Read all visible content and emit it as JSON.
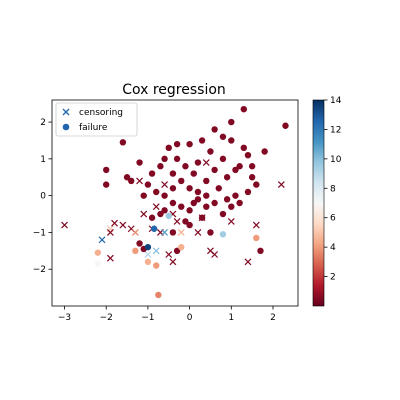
{
  "chart_data": {
    "type": "scatter",
    "title": "Cox regression",
    "xlabel": "",
    "ylabel": "",
    "xlim": [
      -3.3,
      2.6
    ],
    "ylim": [
      -3.0,
      2.6
    ],
    "xticks": [
      -3,
      -2,
      -1,
      0,
      1,
      2
    ],
    "yticks": [
      -2,
      -1,
      0,
      1,
      2
    ],
    "grid": false,
    "legend": {
      "location": "upper-left",
      "entries": [
        {
          "label": "censoring",
          "marker": "x",
          "color": "#2166ac"
        },
        {
          "label": "failure",
          "marker": "o",
          "color": "#2166ac"
        }
      ]
    },
    "colorbar": {
      "min": 0,
      "max": 14,
      "ticks": [
        2,
        4,
        6,
        8,
        10,
        12,
        14
      ],
      "colormap": "RdBu",
      "colors": [
        "#67001f",
        "#b2182b",
        "#d6604d",
        "#f4a582",
        "#fddbc7",
        "#f7f7f7",
        "#d1e5f0",
        "#92c5de",
        "#4393c3",
        "#2166ac",
        "#053061"
      ]
    },
    "series": [
      {
        "name": "censoring",
        "marker": "x",
        "points": [
          {
            "x": -3.0,
            "y": -0.8,
            "c": 0.5
          },
          {
            "x": -2.1,
            "y": -1.2,
            "c": 12.5
          },
          {
            "x": -1.9,
            "y": -0.9,
            "c": 5.0
          },
          {
            "x": -1.8,
            "y": -0.75,
            "c": 0.5
          },
          {
            "x": -1.9,
            "y": -1.0,
            "c": 0.5
          },
          {
            "x": -1.9,
            "y": -1.7,
            "c": 0.5
          },
          {
            "x": -1.6,
            "y": -0.8,
            "c": 0.5
          },
          {
            "x": -1.4,
            "y": -0.9,
            "c": 0.5
          },
          {
            "x": -1.3,
            "y": -1.0,
            "c": 3.5
          },
          {
            "x": -1.2,
            "y": 0.4,
            "c": 0.5
          },
          {
            "x": -1.1,
            "y": -0.5,
            "c": 0.5
          },
          {
            "x": -1.0,
            "y": -1.6,
            "c": 9.0
          },
          {
            "x": -0.9,
            "y": -0.9,
            "c": 0.5
          },
          {
            "x": -0.8,
            "y": -1.5,
            "c": 10.0
          },
          {
            "x": -0.8,
            "y": -0.3,
            "c": 0.5
          },
          {
            "x": -0.7,
            "y": -1.0,
            "c": 0.5
          },
          {
            "x": -0.6,
            "y": -1.0,
            "c": 11.0
          },
          {
            "x": -0.5,
            "y": -1.6,
            "c": 0.5
          },
          {
            "x": -0.4,
            "y": -1.8,
            "c": 0.5
          },
          {
            "x": -0.3,
            "y": -0.7,
            "c": 0.5
          },
          {
            "x": -0.2,
            "y": -1.0,
            "c": 4.5
          },
          {
            "x": -0.4,
            "y": -0.5,
            "c": 0.5
          },
          {
            "x": 0.3,
            "y": -0.6,
            "c": 0.5
          },
          {
            "x": 0.5,
            "y": -1.5,
            "c": 0.5
          },
          {
            "x": 0.6,
            "y": -1.6,
            "c": 0.5
          },
          {
            "x": 0.2,
            "y": -1.0,
            "c": 0.5
          },
          {
            "x": 1.0,
            "y": -0.7,
            "c": 0.5
          },
          {
            "x": 1.4,
            "y": -1.8,
            "c": 0.5
          },
          {
            "x": 1.6,
            "y": -0.8,
            "c": 0.5
          },
          {
            "x": 2.2,
            "y": 0.3,
            "c": 0.5
          },
          {
            "x": -0.6,
            "y": 0.3,
            "c": 0.5
          },
          {
            "x": 0.4,
            "y": 0.9,
            "c": 0.5
          }
        ]
      },
      {
        "name": "failure",
        "marker": "o",
        "points": [
          {
            "x": -2.2,
            "y": -1.55,
            "c": 4.5
          },
          {
            "x": -2.2,
            "y": -1.85,
            "c": 7.0
          },
          {
            "x": -2.0,
            "y": 0.7,
            "c": 0.5
          },
          {
            "x": -2.0,
            "y": 0.3,
            "c": 0.5
          },
          {
            "x": -1.5,
            "y": 0.5,
            "c": 0.5
          },
          {
            "x": -1.3,
            "y": -1.5,
            "c": 4.0
          },
          {
            "x": -1.2,
            "y": -1.3,
            "c": 0.5
          },
          {
            "x": -1.1,
            "y": -1.45,
            "c": 0.5
          },
          {
            "x": -1.0,
            "y": -1.4,
            "c": 13.5
          },
          {
            "x": -1.0,
            "y": -1.8,
            "c": 4.5
          },
          {
            "x": -0.9,
            "y": -0.6,
            "c": 0.5
          },
          {
            "x": -0.85,
            "y": -0.9,
            "c": 12.5
          },
          {
            "x": -0.8,
            "y": -1.9,
            "c": 4.0
          },
          {
            "x": -0.75,
            "y": -2.7,
            "c": 3.5
          },
          {
            "x": -0.7,
            "y": -0.5,
            "c": 0.5
          },
          {
            "x": -0.6,
            "y": -0.4,
            "c": 0.5
          },
          {
            "x": -0.5,
            "y": -0.55,
            "c": 9.5
          },
          {
            "x": -0.4,
            "y": -1.0,
            "c": 0.5
          },
          {
            "x": -0.4,
            "y": 0.2,
            "c": 0.5
          },
          {
            "x": -0.3,
            "y": -1.5,
            "c": 0.5
          },
          {
            "x": -0.2,
            "y": -1.4,
            "c": 4.5
          },
          {
            "x": -0.1,
            "y": -0.7,
            "c": 0.5
          },
          {
            "x": 0.0,
            "y": -0.4,
            "c": 0.5
          },
          {
            "x": 0.1,
            "y": -0.2,
            "c": 0.5
          },
          {
            "x": 0.2,
            "y": -0.1,
            "c": 0.5
          },
          {
            "x": 0.3,
            "y": -0.6,
            "c": 0.5
          },
          {
            "x": 0.4,
            "y": -0.3,
            "c": 0.5
          },
          {
            "x": 0.5,
            "y": -1.0,
            "c": 0.5
          },
          {
            "x": 0.6,
            "y": -0.2,
            "c": 0.5
          },
          {
            "x": 0.8,
            "y": -1.05,
            "c": 9.5
          },
          {
            "x": 0.8,
            "y": -0.5,
            "c": 0.5
          },
          {
            "x": 1.0,
            "y": -0.3,
            "c": 0.5
          },
          {
            "x": 1.2,
            "y": -0.2,
            "c": 0.5
          },
          {
            "x": 1.4,
            "y": 0.1,
            "c": 0.5
          },
          {
            "x": 1.6,
            "y": -1.15,
            "c": 4.0
          },
          {
            "x": 1.7,
            "y": -1.5,
            "c": 0.5
          },
          {
            "x": -1.6,
            "y": 1.45,
            "c": 0.5
          },
          {
            "x": -1.4,
            "y": 0.4,
            "c": 0.5
          },
          {
            "x": -1.2,
            "y": 0.9,
            "c": 0.5
          },
          {
            "x": -1.1,
            "y": 0.0,
            "c": 0.5
          },
          {
            "x": -1.0,
            "y": 0.3,
            "c": 0.5
          },
          {
            "x": -0.9,
            "y": 0.6,
            "c": 0.5
          },
          {
            "x": -0.8,
            "y": 0.1,
            "c": 0.5
          },
          {
            "x": -0.7,
            "y": 0.8,
            "c": 0.5
          },
          {
            "x": -0.6,
            "y": 0.0,
            "c": 0.5
          },
          {
            "x": -0.5,
            "y": 1.3,
            "c": 0.5
          },
          {
            "x": -0.4,
            "y": 0.6,
            "c": 0.5
          },
          {
            "x": -0.3,
            "y": 1.0,
            "c": 0.5
          },
          {
            "x": -0.3,
            "y": 1.4,
            "c": 0.5
          },
          {
            "x": -0.2,
            "y": 0.4,
            "c": 0.5
          },
          {
            "x": -0.1,
            "y": 0.8,
            "c": 0.5
          },
          {
            "x": 0.0,
            "y": 0.2,
            "c": 0.5
          },
          {
            "x": 0.0,
            "y": 1.4,
            "c": 0.5
          },
          {
            "x": 0.1,
            "y": 0.6,
            "c": 0.5
          },
          {
            "x": 0.2,
            "y": 0.1,
            "c": 0.5
          },
          {
            "x": 0.3,
            "y": 1.5,
            "c": 0.5
          },
          {
            "x": 0.4,
            "y": 0.4,
            "c": 0.5
          },
          {
            "x": 0.5,
            "y": 1.2,
            "c": 0.5
          },
          {
            "x": 0.6,
            "y": 0.7,
            "c": 0.5
          },
          {
            "x": 0.7,
            "y": 0.2,
            "c": 0.5
          },
          {
            "x": 0.8,
            "y": 1.0,
            "c": 0.5
          },
          {
            "x": 0.9,
            "y": 0.5,
            "c": 0.5
          },
          {
            "x": 1.0,
            "y": 1.5,
            "c": 0.5
          },
          {
            "x": 1.1,
            "y": 0.0,
            "c": 0.5
          },
          {
            "x": 1.2,
            "y": 0.8,
            "c": 0.5
          },
          {
            "x": 1.3,
            "y": 2.35,
            "c": 0.5
          },
          {
            "x": 1.4,
            "y": 1.1,
            "c": 0.5
          },
          {
            "x": 1.5,
            "y": 0.5,
            "c": 0.5
          },
          {
            "x": 1.6,
            "y": 0.3,
            "c": 0.5
          },
          {
            "x": 1.8,
            "y": 1.2,
            "c": 0.5
          },
          {
            "x": 2.3,
            "y": 1.9,
            "c": 0.5
          },
          {
            "x": 1.0,
            "y": 2.0,
            "c": 0.5
          },
          {
            "x": 0.8,
            "y": 1.6,
            "c": 0.5
          },
          {
            "x": 0.6,
            "y": 1.8,
            "c": 0.5
          },
          {
            "x": 0.2,
            "y": 0.9,
            "c": 0.5
          },
          {
            "x": -0.6,
            "y": 1.0,
            "c": 0.5
          },
          {
            "x": -0.4,
            "y": -0.2,
            "c": 0.5
          },
          {
            "x": 0.4,
            "y": 0.0,
            "c": 0.5
          },
          {
            "x": 0.9,
            "y": -0.1,
            "c": 0.5
          },
          {
            "x": 1.1,
            "y": 0.7,
            "c": 0.5
          },
          {
            "x": 1.3,
            "y": 1.3,
            "c": 0.5
          },
          {
            "x": 1.5,
            "y": 0.8,
            "c": 0.5
          },
          {
            "x": -0.2,
            "y": -0.3,
            "c": 0.5
          },
          {
            "x": 0.0,
            "y": -0.8,
            "c": 0.5
          }
        ]
      }
    ]
  }
}
